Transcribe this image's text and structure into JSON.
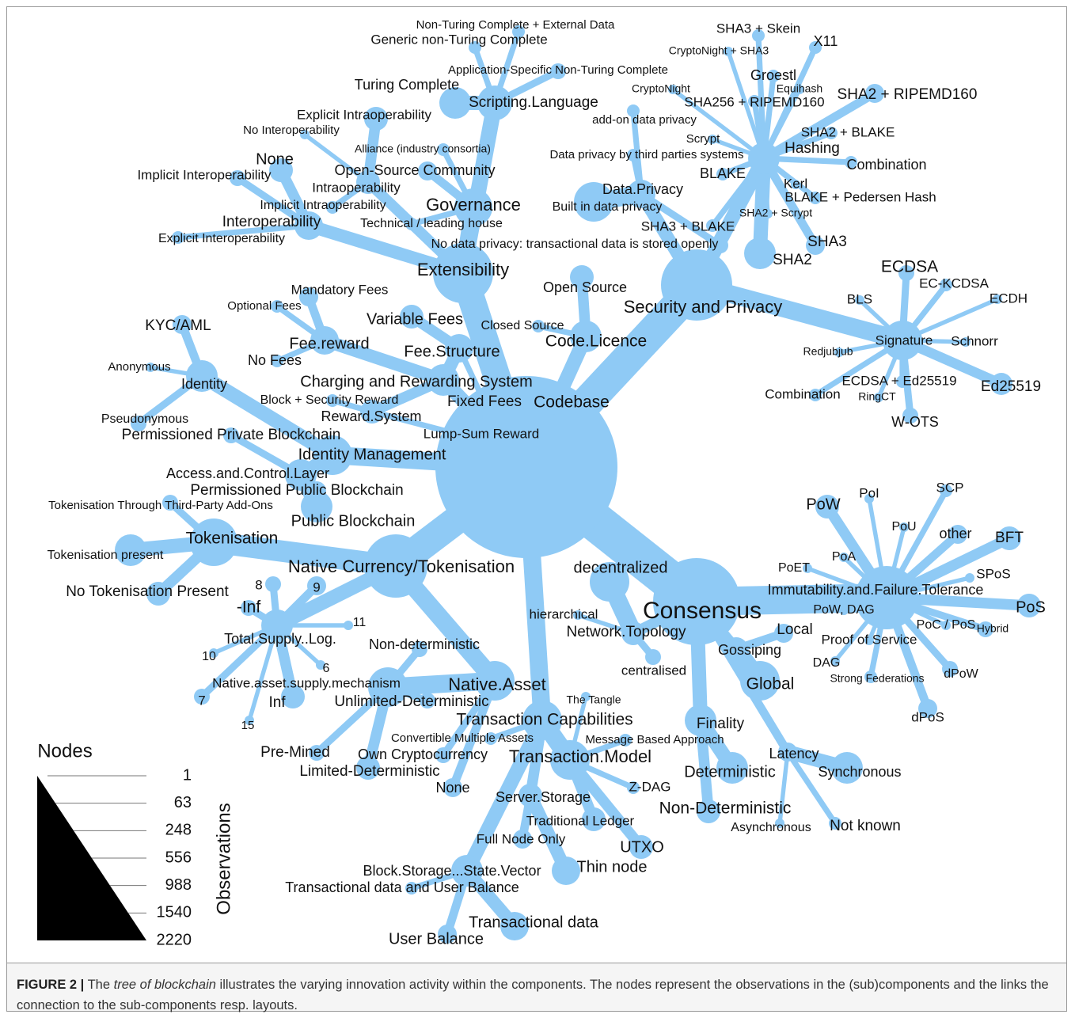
{
  "nodes": [
    {
      "label": "Extensibility"
    },
    {
      "label": "Governance"
    },
    {
      "label": "Open-Source Community"
    },
    {
      "label": "Alliance (industry consortia)"
    },
    {
      "label": "Technical / leading house"
    },
    {
      "label": "Scripting.Language"
    },
    {
      "label": "Turing Complete"
    },
    {
      "label": "Generic non-Turing Complete"
    },
    {
      "label": "Non-Turing Complete + External Data"
    },
    {
      "label": "Application-Specific Non-Turing Complete"
    },
    {
      "label": "Interoperability"
    },
    {
      "label": "Implicit Interoperability"
    },
    {
      "label": "Explicit Interoperability"
    },
    {
      "label": "None"
    },
    {
      "label": "Intraoperability"
    },
    {
      "label": "Explicit Intraoperability"
    },
    {
      "label": "No Interoperability"
    },
    {
      "label": "Implicit Intraoperability"
    },
    {
      "label": "Security and Privacy"
    },
    {
      "label": "Data.Privacy"
    },
    {
      "label": "add-on data privacy"
    },
    {
      "label": "Data privacy by third parties systems"
    },
    {
      "label": "Built in data privacy"
    },
    {
      "label": "No data privacy: transactional data is stored openly"
    },
    {
      "label": "Hashing"
    },
    {
      "label": "SHA3 + Skein"
    },
    {
      "label": "CryptoNight + SHA3"
    },
    {
      "label": "X11"
    },
    {
      "label": "Groestl"
    },
    {
      "label": "Equihash"
    },
    {
      "label": "CryptoNight"
    },
    {
      "label": "SHA256 + RIPEMD160"
    },
    {
      "label": "SHA2 + RIPEMD160"
    },
    {
      "label": "SHA2 + BLAKE"
    },
    {
      "label": "Scrypt"
    },
    {
      "label": "Combination"
    },
    {
      "label": "BLAKE"
    },
    {
      "label": "Kerl"
    },
    {
      "label": "BLAKE + Pedersen Hash"
    },
    {
      "label": "SHA2 + Scrypt"
    },
    {
      "label": "SHA3 + BLAKE"
    },
    {
      "label": "SHA3"
    },
    {
      "label": "SHA2"
    },
    {
      "label": "Signature"
    },
    {
      "label": "ECDSA"
    },
    {
      "label": "EC-KCDSA"
    },
    {
      "label": "ECDH"
    },
    {
      "label": "BLS"
    },
    {
      "label": "Schnorr"
    },
    {
      "label": "Redjubjub"
    },
    {
      "label": "ECDSA + Ed25519"
    },
    {
      "label": "Ed25519"
    },
    {
      "label": "Combination"
    },
    {
      "label": "RingCT"
    },
    {
      "label": "W-OTS"
    },
    {
      "label": "Code.Licence"
    },
    {
      "label": "Open Source"
    },
    {
      "label": "Closed Source"
    },
    {
      "label": "Codebase"
    },
    {
      "label": "Charging and Rewarding System"
    },
    {
      "label": "Fee.Structure"
    },
    {
      "label": "Variable Fees"
    },
    {
      "label": "Fixed Fees"
    },
    {
      "label": "Fee.reward"
    },
    {
      "label": "Mandatory Fees"
    },
    {
      "label": "Optional Fees"
    },
    {
      "label": "No Fees"
    },
    {
      "label": "Reward.System"
    },
    {
      "label": "Block + Security Reward"
    },
    {
      "label": "Lump-Sum Reward"
    },
    {
      "label": "Identity Management"
    },
    {
      "label": "Access.and.Control.Layer"
    },
    {
      "label": "Permissioned Private Blockchain"
    },
    {
      "label": "Permissioned Public Blockchain"
    },
    {
      "label": "Public Blockchain"
    },
    {
      "label": "Identity"
    },
    {
      "label": "KYC/AML"
    },
    {
      "label": "Anonymous"
    },
    {
      "label": "Pseudonymous"
    },
    {
      "label": "Native Currency/Tokenisation"
    },
    {
      "label": "Tokenisation"
    },
    {
      "label": "Tokenisation Through Third-Party Add-Ons"
    },
    {
      "label": "Tokenisation present"
    },
    {
      "label": "No Tokenisation Present"
    },
    {
      "label": "Total.Supply..Log."
    },
    {
      "label": "8"
    },
    {
      "label": "9"
    },
    {
      "label": "-Inf"
    },
    {
      "label": "11"
    },
    {
      "label": "10"
    },
    {
      "label": "6"
    },
    {
      "label": "7"
    },
    {
      "label": "15"
    },
    {
      "label": "Inf"
    },
    {
      "label": "Native.Asset"
    },
    {
      "label": "Native.asset.supply.mechanism"
    },
    {
      "label": "Unlimited-Deterministic"
    },
    {
      "label": "Limited-Deterministic"
    },
    {
      "label": "Pre-Mined"
    },
    {
      "label": "Non-deterministic"
    },
    {
      "label": "Own Cryptocurrency"
    },
    {
      "label": "None"
    },
    {
      "label": "Transaction Capabilities"
    },
    {
      "label": "Convertible Multiple Assets"
    },
    {
      "label": "Transaction.Model"
    },
    {
      "label": "The Tangle"
    },
    {
      "label": "Message Based Approach"
    },
    {
      "label": "Z-DAG"
    },
    {
      "label": "UTXO"
    },
    {
      "label": "Traditional Ledger"
    },
    {
      "label": "Server.Storage"
    },
    {
      "label": "Full Node Only"
    },
    {
      "label": "Thin node"
    },
    {
      "label": "Block.Storage...State.Vector"
    },
    {
      "label": "Transactional data and User Balance"
    },
    {
      "label": "Transactional data"
    },
    {
      "label": "User Balance"
    },
    {
      "label": "Consensus"
    },
    {
      "label": "Network.Topology"
    },
    {
      "label": "decentralized"
    },
    {
      "label": "hierarchical"
    },
    {
      "label": "centralised"
    },
    {
      "label": "Immutability.and.Failure.Tolerance"
    },
    {
      "label": "PoW"
    },
    {
      "label": "PoI"
    },
    {
      "label": "SCP"
    },
    {
      "label": "PoU"
    },
    {
      "label": "other"
    },
    {
      "label": "BFT"
    },
    {
      "label": "PoA"
    },
    {
      "label": "PoET"
    },
    {
      "label": "SPoS"
    },
    {
      "label": "PoS"
    },
    {
      "label": "PoW, DAG"
    },
    {
      "label": "PoC / PoS"
    },
    {
      "label": "Hybrid"
    },
    {
      "label": "Proof of Service"
    },
    {
      "label": "DAG"
    },
    {
      "label": "Strong Federations"
    },
    {
      "label": "dPoW"
    },
    {
      "label": "dPoS"
    },
    {
      "label": "Gossiping"
    },
    {
      "label": "Local"
    },
    {
      "label": "Global"
    },
    {
      "label": "Finality"
    },
    {
      "label": "Deterministic"
    },
    {
      "label": "Non-Deterministic"
    },
    {
      "label": "Latency"
    },
    {
      "label": "Synchronous"
    },
    {
      "label": "Asynchronous"
    },
    {
      "label": "Not known"
    }
  ],
  "legend": {
    "title": "Nodes",
    "axis_label": "Observations",
    "ticks": [
      1,
      63,
      248,
      556,
      988,
      1540,
      2220
    ]
  },
  "caption": {
    "figure": "FIGURE 2 |",
    "lead": "The",
    "emphasis": "tree of blockchain",
    "text": "illustrates the varying innovation activity within the components. The nodes represent the observations in the (sub)components and the links the connection to the sub-components resp. layouts."
  }
}
